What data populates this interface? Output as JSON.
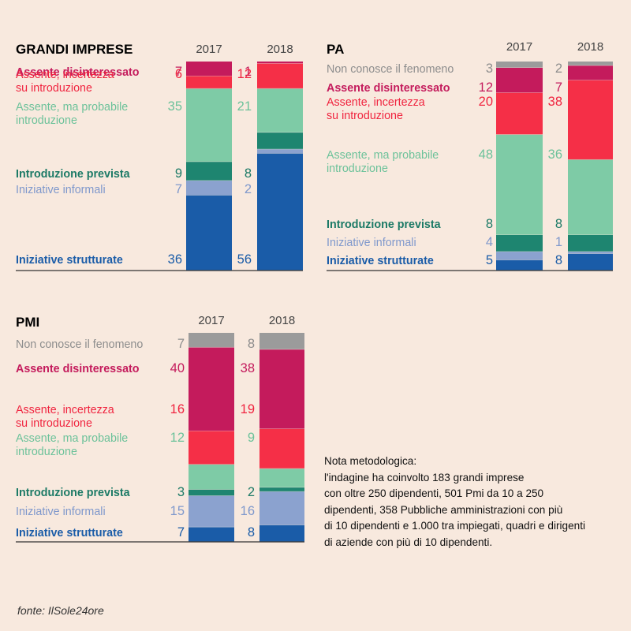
{
  "colors": {
    "non_conosce": "#9b9b9b",
    "assente_disinteressato": "#c41b5c",
    "assente_incertezza": "#f52f47",
    "assente_probabile": "#7ecba6",
    "introduzione_prevista": "#1e8570",
    "iniziative_informali": "#8ba2cf",
    "iniziative_strutturate": "#1a5ca8"
  },
  "chart_data": [
    {
      "id": "grandi-imprese",
      "type": "stacked-bar",
      "title": "GRANDI IMPRESE",
      "categories": [
        "2017",
        "2018"
      ],
      "unit": "%",
      "series": [
        {
          "key": "assente_disinteressato",
          "label_lines": [
            "Assente disinteressato"
          ],
          "values": [
            7,
            1
          ]
        },
        {
          "key": "assente_incertezza",
          "label_lines": [
            "Assente, incertezza",
            "su introduzione"
          ],
          "values": [
            6,
            12
          ]
        },
        {
          "key": "assente_probabile",
          "label_lines": [
            "Assente, ma probabile",
            "introduzione"
          ],
          "values": [
            35,
            21
          ]
        },
        {
          "key": "introduzione_prevista",
          "label_lines": [
            "Introduzione prevista"
          ],
          "values": [
            9,
            8
          ]
        },
        {
          "key": "iniziative_informali",
          "label_lines": [
            "Iniziative informali"
          ],
          "values": [
            7,
            2
          ]
        },
        {
          "key": "iniziative_strutturate",
          "label_lines": [
            "Iniziative strutturate"
          ],
          "values": [
            36,
            56
          ]
        }
      ]
    },
    {
      "id": "pa",
      "type": "stacked-bar",
      "title": "PA",
      "categories": [
        "2017",
        "2018"
      ],
      "unit": "%",
      "series": [
        {
          "key": "non_conosce",
          "label_lines": [
            "Non conosce il fenomeno"
          ],
          "values": [
            3,
            2
          ]
        },
        {
          "key": "assente_disinteressato",
          "label_lines": [
            "Assente disinteressato"
          ],
          "values": [
            12,
            7
          ]
        },
        {
          "key": "assente_incertezza",
          "label_lines": [
            "Assente, incertezza",
            "su introduzione"
          ],
          "values": [
            20,
            38
          ]
        },
        {
          "key": "assente_probabile",
          "label_lines": [
            "Assente, ma probabile",
            "introduzione"
          ],
          "values": [
            48,
            36
          ]
        },
        {
          "key": "introduzione_prevista",
          "label_lines": [
            "Introduzione prevista"
          ],
          "values": [
            8,
            8
          ]
        },
        {
          "key": "iniziative_informali",
          "label_lines": [
            "Iniziative informali"
          ],
          "values": [
            4,
            1
          ]
        },
        {
          "key": "iniziative_strutturate",
          "label_lines": [
            "Iniziative strutturate"
          ],
          "values": [
            5,
            8
          ]
        }
      ]
    },
    {
      "id": "pmi",
      "type": "stacked-bar",
      "title": "PMI",
      "categories": [
        "2017",
        "2018"
      ],
      "unit": "%",
      "series": [
        {
          "key": "non_conosce",
          "label_lines": [
            "Non conosce il fenomeno"
          ],
          "values": [
            7,
            8
          ]
        },
        {
          "key": "assente_disinteressato",
          "label_lines": [
            "Assente disinteressato"
          ],
          "values": [
            40,
            38
          ]
        },
        {
          "key": "assente_incertezza",
          "label_lines": [
            "Assente, incertezza",
            "su introduzione"
          ],
          "values": [
            16,
            19
          ]
        },
        {
          "key": "assente_probabile",
          "label_lines": [
            "Assente, ma probabile",
            "introduzione"
          ],
          "values": [
            12,
            9
          ]
        },
        {
          "key": "introduzione_prevista",
          "label_lines": [
            "Introduzione prevista"
          ],
          "values": [
            3,
            2
          ]
        },
        {
          "key": "iniziative_informali",
          "label_lines": [
            "Iniziative informali"
          ],
          "values": [
            15,
            16
          ]
        },
        {
          "key": "iniziative_strutturate",
          "label_lines": [
            "Iniziative strutturate"
          ],
          "values": [
            7,
            8
          ]
        }
      ]
    }
  ],
  "note": {
    "lines": [
      "Nota metodologica:",
      "l'indagine ha coinvolto 183 grandi imprese",
      "con oltre 250 dipendenti, 501 Pmi da 10 a 250",
      "dipendenti, 358 Pubbliche amministrazioni con più",
      "di 10 dipendenti e 1.000 tra impiegati, quadri e dirigenti",
      "di aziende con più di 10 dipendenti."
    ]
  },
  "source": "fonte: IlSole24ore"
}
